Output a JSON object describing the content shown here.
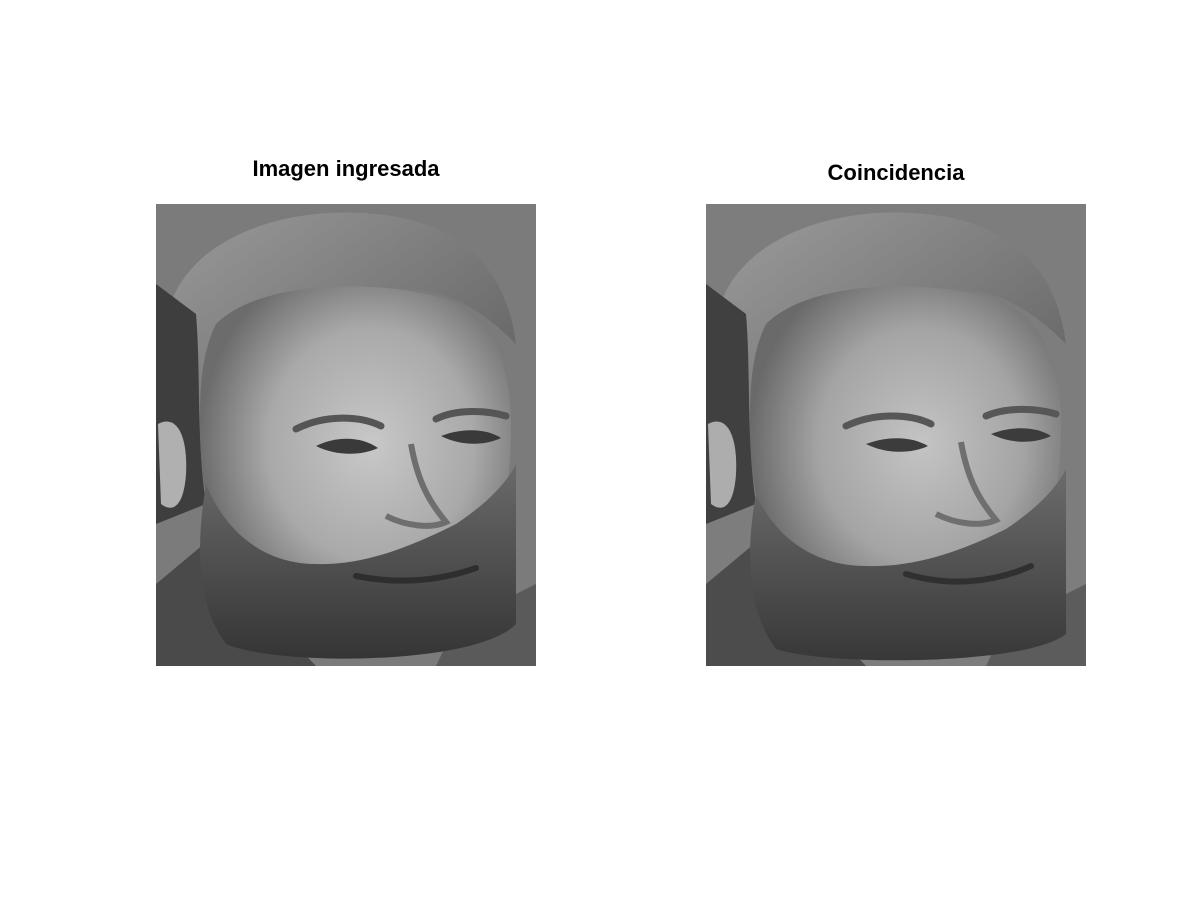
{
  "figure": {
    "left_panel": {
      "title": "Imagen ingresada"
    },
    "right_panel": {
      "title": "Coincidencia"
    }
  }
}
